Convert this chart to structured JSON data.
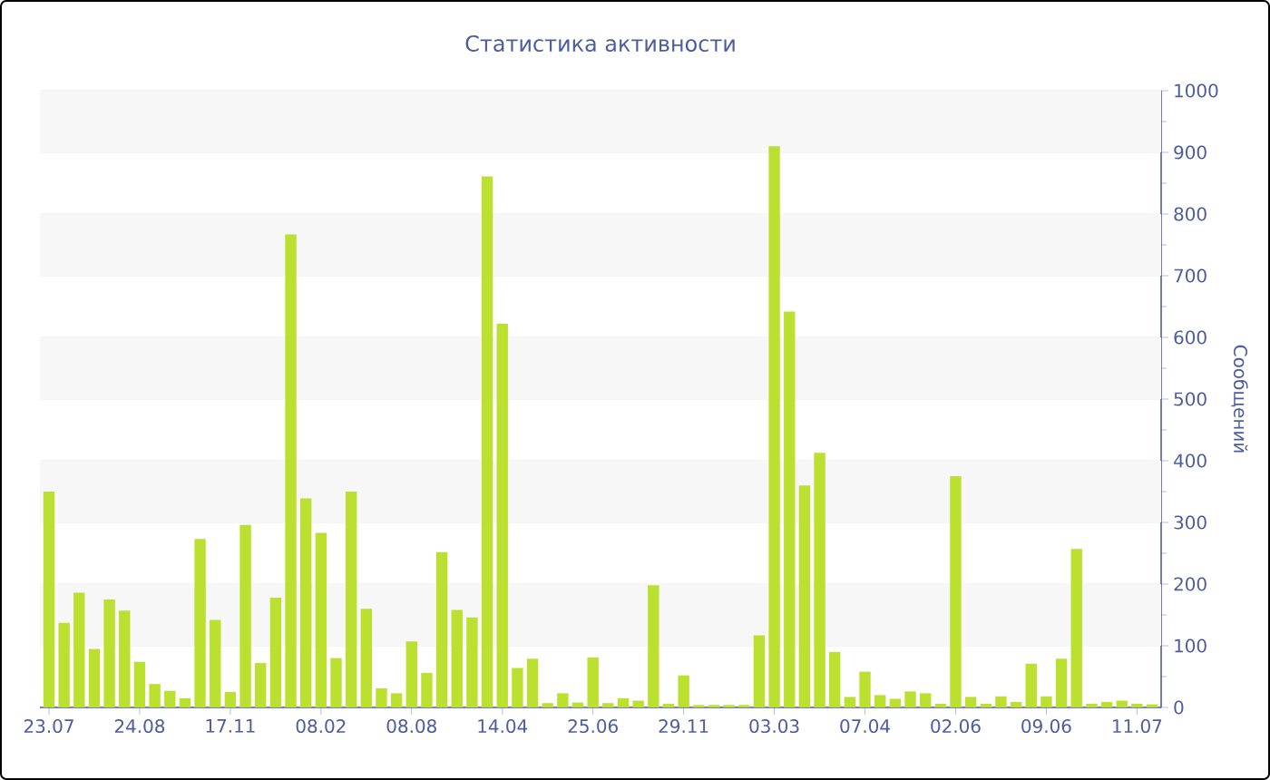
{
  "chart_data": {
    "type": "bar",
    "title": "Статистика активности",
    "ylabel": "Сообщений",
    "color": "#bbe02f",
    "grid": true,
    "ylim": [
      0,
      1000
    ],
    "yticks": [
      0,
      100,
      200,
      300,
      400,
      500,
      600,
      700,
      800,
      900,
      1000
    ],
    "categories": [
      "23.07",
      null,
      null,
      null,
      null,
      null,
      "24.08",
      null,
      null,
      null,
      null,
      null,
      "17.11",
      null,
      null,
      null,
      null,
      null,
      "08.02",
      null,
      null,
      null,
      null,
      null,
      "08.08",
      null,
      null,
      null,
      null,
      null,
      "14.04",
      null,
      null,
      null,
      null,
      null,
      "25.06",
      null,
      null,
      null,
      null,
      null,
      "29.11",
      null,
      null,
      null,
      null,
      null,
      "03.03",
      null,
      null,
      null,
      null,
      null,
      "07.04",
      null,
      null,
      null,
      null,
      null,
      "02.06",
      null,
      null,
      null,
      null,
      null,
      "09.06",
      null,
      null,
      null,
      null,
      null,
      "11.07",
      null
    ],
    "values": [
      350,
      137,
      186,
      95,
      175,
      157,
      74,
      38,
      27,
      15,
      273,
      142,
      25,
      296,
      72,
      178,
      767,
      339,
      283,
      80,
      350,
      160,
      31,
      23,
      107,
      56,
      252,
      158,
      146,
      861,
      622,
      64,
      79,
      7,
      23,
      8,
      81,
      7,
      15,
      11,
      198,
      6,
      52,
      4,
      4,
      4,
      4,
      117,
      910,
      642,
      360,
      413,
      90,
      17,
      58,
      20,
      14,
      26,
      23,
      6,
      375,
      17,
      6,
      18,
      9,
      71,
      18,
      79,
      257,
      6,
      9,
      11,
      6,
      5
    ]
  }
}
